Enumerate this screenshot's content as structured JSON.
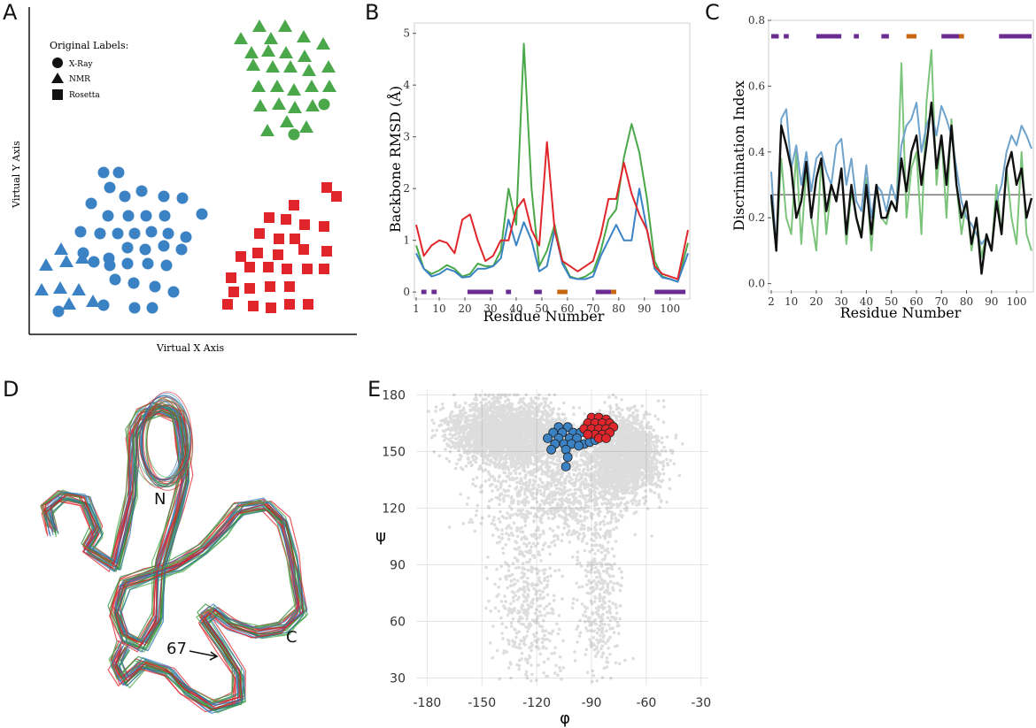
{
  "panels": {
    "A": "A",
    "B": "B",
    "C": "C",
    "D": "D",
    "E": "E"
  },
  "colors": {
    "green": "#4aa84a",
    "blue": "#3a82c4",
    "red": "#e0262b",
    "purple": "#6a2c91",
    "orange": "#c8650f",
    "gray": "#555555",
    "lightgreen": "#7cc47c",
    "lightblue": "#6fa3cc"
  },
  "chart_data": [
    {
      "panel": "A",
      "type": "scatter",
      "xlabel": "Virtual X Axis",
      "ylabel": "Virtual Y Axis",
      "legend": {
        "title": "Original Labels:",
        "entries": [
          {
            "label": "X-Ray",
            "shape": "circle"
          },
          {
            "label": "NMR",
            "shape": "triangle"
          },
          {
            "label": "Rosetta",
            "shape": "square"
          }
        ]
      },
      "clusters": [
        {
          "color": "green",
          "description": "top-right cluster, mostly triangles",
          "counts": {
            "triangle": 27,
            "circle": 2
          }
        },
        {
          "color": "blue",
          "description": "left cluster, circles with triangles at lower-left",
          "counts": {
            "circle": 38,
            "triangle": 9
          }
        },
        {
          "color": "red",
          "description": "bottom-right cluster, squares",
          "counts": {
            "square": 30
          }
        }
      ]
    },
    {
      "panel": "B",
      "type": "line",
      "xlabel": "Residue Number",
      "ylabel": "Backbone RMSD (Å)",
      "xticks": [
        1,
        10,
        20,
        30,
        40,
        50,
        60,
        70,
        80,
        90,
        100
      ],
      "yticks": [
        0,
        1,
        2,
        3,
        4,
        5
      ],
      "xlim": [
        1,
        107
      ],
      "ylim": [
        -0.1,
        5.2
      ],
      "x": [
        1,
        4,
        7,
        10,
        13,
        16,
        19,
        22,
        25,
        28,
        31,
        34,
        37,
        40,
        43,
        46,
        49,
        52,
        55,
        58,
        61,
        64,
        67,
        70,
        73,
        76,
        79,
        82,
        85,
        88,
        91,
        94,
        97,
        100,
        103,
        107
      ],
      "series": [
        {
          "color": "green",
          "values": [
            0.9,
            0.45,
            0.35,
            0.42,
            0.52,
            0.45,
            0.3,
            0.35,
            0.55,
            0.5,
            0.5,
            0.8,
            2.0,
            1.3,
            4.8,
            2.0,
            0.5,
            0.8,
            1.3,
            0.6,
            0.3,
            0.25,
            0.3,
            0.4,
            0.8,
            1.4,
            1.6,
            2.6,
            3.25,
            2.7,
            1.8,
            0.6,
            0.3,
            0.25,
            0.2,
            0.95
          ]
        },
        {
          "color": "blue",
          "values": [
            0.75,
            0.45,
            0.3,
            0.35,
            0.45,
            0.4,
            0.28,
            0.3,
            0.45,
            0.45,
            0.5,
            0.65,
            1.4,
            0.9,
            1.35,
            1.0,
            0.4,
            0.5,
            1.2,
            0.55,
            0.28,
            0.25,
            0.25,
            0.3,
            0.7,
            1.0,
            1.3,
            1.0,
            1.0,
            2.0,
            1.2,
            0.45,
            0.28,
            0.25,
            0.2,
            0.75
          ]
        },
        {
          "color": "red",
          "values": [
            1.3,
            0.7,
            0.9,
            1.0,
            0.95,
            0.75,
            1.4,
            1.5,
            1.0,
            0.6,
            0.7,
            1.0,
            1.0,
            1.6,
            1.8,
            1.2,
            0.9,
            2.9,
            1.2,
            0.6,
            0.5,
            0.4,
            0.5,
            0.6,
            1.1,
            1.8,
            1.8,
            2.5,
            1.9,
            1.5,
            1.2,
            0.5,
            0.35,
            0.3,
            0.25,
            1.2
          ]
        }
      ],
      "secondary_structure": [
        {
          "start": 3,
          "end": 5,
          "color": "purple"
        },
        {
          "start": 7,
          "end": 9,
          "color": "purple"
        },
        {
          "start": 21,
          "end": 31,
          "color": "purple"
        },
        {
          "start": 36,
          "end": 38,
          "color": "purple"
        },
        {
          "start": 47,
          "end": 50,
          "color": "purple"
        },
        {
          "start": 56,
          "end": 60,
          "color": "orange"
        },
        {
          "start": 71,
          "end": 77,
          "color": "purple"
        },
        {
          "start": 77,
          "end": 79,
          "color": "orange"
        },
        {
          "start": 94,
          "end": 106,
          "color": "purple"
        }
      ]
    },
    {
      "panel": "C",
      "type": "line",
      "xlabel": "Residue Number",
      "ylabel": "Discrimination Index",
      "xticks": [
        2,
        10,
        20,
        30,
        40,
        50,
        60,
        70,
        80,
        90,
        100
      ],
      "yticks": [
        0.0,
        0.2,
        0.4,
        0.6,
        0.8
      ],
      "xlim": [
        2,
        106
      ],
      "ylim": [
        -0.02,
        0.8
      ],
      "hline": 0.27,
      "x": [
        2,
        4,
        6,
        8,
        10,
        12,
        14,
        16,
        18,
        20,
        22,
        24,
        26,
        28,
        30,
        32,
        34,
        36,
        38,
        40,
        42,
        44,
        46,
        48,
        50,
        52,
        54,
        56,
        58,
        60,
        62,
        64,
        66,
        68,
        70,
        72,
        74,
        76,
        78,
        80,
        82,
        84,
        86,
        88,
        90,
        92,
        94,
        96,
        98,
        100,
        102,
        104,
        106
      ],
      "series": [
        {
          "color": "lightgreen",
          "values": [
            0.25,
            0.1,
            0.38,
            0.2,
            0.15,
            0.4,
            0.12,
            0.35,
            0.2,
            0.1,
            0.38,
            0.15,
            0.3,
            0.25,
            0.35,
            0.12,
            0.28,
            0.2,
            0.15,
            0.32,
            0.1,
            0.3,
            0.2,
            0.18,
            0.25,
            0.22,
            0.67,
            0.2,
            0.35,
            0.4,
            0.15,
            0.55,
            0.71,
            0.3,
            0.45,
            0.2,
            0.5,
            0.3,
            0.15,
            0.25,
            0.1,
            0.2,
            0.08,
            0.15,
            0.1,
            0.3,
            0.15,
            0.35,
            0.2,
            0.12,
            0.4,
            0.15,
            0.1
          ]
        },
        {
          "color": "lightblue",
          "values": [
            0.34,
            0.1,
            0.5,
            0.53,
            0.35,
            0.42,
            0.3,
            0.4,
            0.28,
            0.38,
            0.4,
            0.34,
            0.3,
            0.42,
            0.44,
            0.3,
            0.38,
            0.25,
            0.22,
            0.36,
            0.2,
            0.3,
            0.28,
            0.22,
            0.3,
            0.25,
            0.42,
            0.48,
            0.5,
            0.55,
            0.4,
            0.48,
            0.52,
            0.45,
            0.54,
            0.5,
            0.45,
            0.35,
            0.25,
            0.2,
            0.18,
            0.15,
            0.12,
            0.14,
            0.1,
            0.25,
            0.3,
            0.4,
            0.45,
            0.42,
            0.48,
            0.45,
            0.41
          ]
        },
        {
          "color": "black",
          "values": [
            0.27,
            0.1,
            0.48,
            0.42,
            0.35,
            0.2,
            0.25,
            0.37,
            0.2,
            0.32,
            0.38,
            0.22,
            0.3,
            0.25,
            0.35,
            0.15,
            0.3,
            0.2,
            0.14,
            0.3,
            0.15,
            0.3,
            0.2,
            0.2,
            0.25,
            0.22,
            0.38,
            0.28,
            0.4,
            0.45,
            0.3,
            0.42,
            0.55,
            0.35,
            0.45,
            0.3,
            0.48,
            0.3,
            0.2,
            0.25,
            0.12,
            0.2,
            0.03,
            0.15,
            0.1,
            0.25,
            0.15,
            0.35,
            0.4,
            0.3,
            0.35,
            0.2,
            0.26
          ]
        }
      ],
      "secondary_structure": [
        {
          "start": 2,
          "end": 5,
          "color": "purple"
        },
        {
          "start": 7,
          "end": 9,
          "color": "purple"
        },
        {
          "start": 20,
          "end": 30,
          "color": "purple"
        },
        {
          "start": 35,
          "end": 37,
          "color": "purple"
        },
        {
          "start": 46,
          "end": 49,
          "color": "purple"
        },
        {
          "start": 56,
          "end": 60,
          "color": "orange"
        },
        {
          "start": 70,
          "end": 77,
          "color": "purple"
        },
        {
          "start": 77,
          "end": 79,
          "color": "orange"
        },
        {
          "start": 93,
          "end": 106,
          "color": "purple"
        }
      ]
    },
    {
      "panel": "E",
      "type": "scatter",
      "xlabel": "φ",
      "ylabel": "ψ",
      "xticks": [
        -180,
        -150,
        -120,
        -90,
        -60,
        -30
      ],
      "yticks": [
        30,
        60,
        90,
        120,
        150,
        180
      ],
      "xlim": [
        -186,
        -26
      ],
      "ylim": [
        26,
        183
      ],
      "highlight_series": [
        {
          "color": "blue",
          "points": [
            [
              -108,
              163
            ],
            [
              -103,
              163
            ],
            [
              -111,
              160
            ],
            [
              -106,
              160
            ],
            [
              -100,
              160
            ],
            [
              -96,
              160
            ],
            [
              -114,
              157
            ],
            [
              -108,
              157
            ],
            [
              -102,
              157
            ],
            [
              -98,
              157
            ],
            [
              -110,
              154
            ],
            [
              -105,
              154
            ],
            [
              -101,
              154
            ],
            [
              -94,
              154
            ],
            [
              -112,
              151
            ],
            [
              -104,
              151
            ],
            [
              -97,
              153
            ],
            [
              -91,
              155
            ],
            [
              -103,
              147
            ],
            [
              -88,
              156
            ],
            [
              -84,
              159
            ],
            [
              -104,
              142
            ]
          ]
        },
        {
          "color": "red",
          "points": [
            [
              -90,
              168
            ],
            [
              -86,
              168
            ],
            [
              -82,
              167
            ],
            [
              -92,
              165
            ],
            [
              -88,
              165
            ],
            [
              -84,
              165
            ],
            [
              -80,
              165
            ],
            [
              -94,
              162
            ],
            [
              -90,
              162
            ],
            [
              -86,
              162
            ],
            [
              -82,
              162
            ],
            [
              -78,
              163
            ],
            [
              -88,
              159
            ],
            [
              -84,
              159
            ],
            [
              -80,
              160
            ],
            [
              -86,
              157
            ],
            [
              -82,
              157
            ],
            [
              -92,
              159
            ]
          ]
        }
      ]
    }
  ],
  "panel_d_labels": {
    "n_terminus": "N",
    "c_terminus": "C",
    "residue": "67"
  }
}
